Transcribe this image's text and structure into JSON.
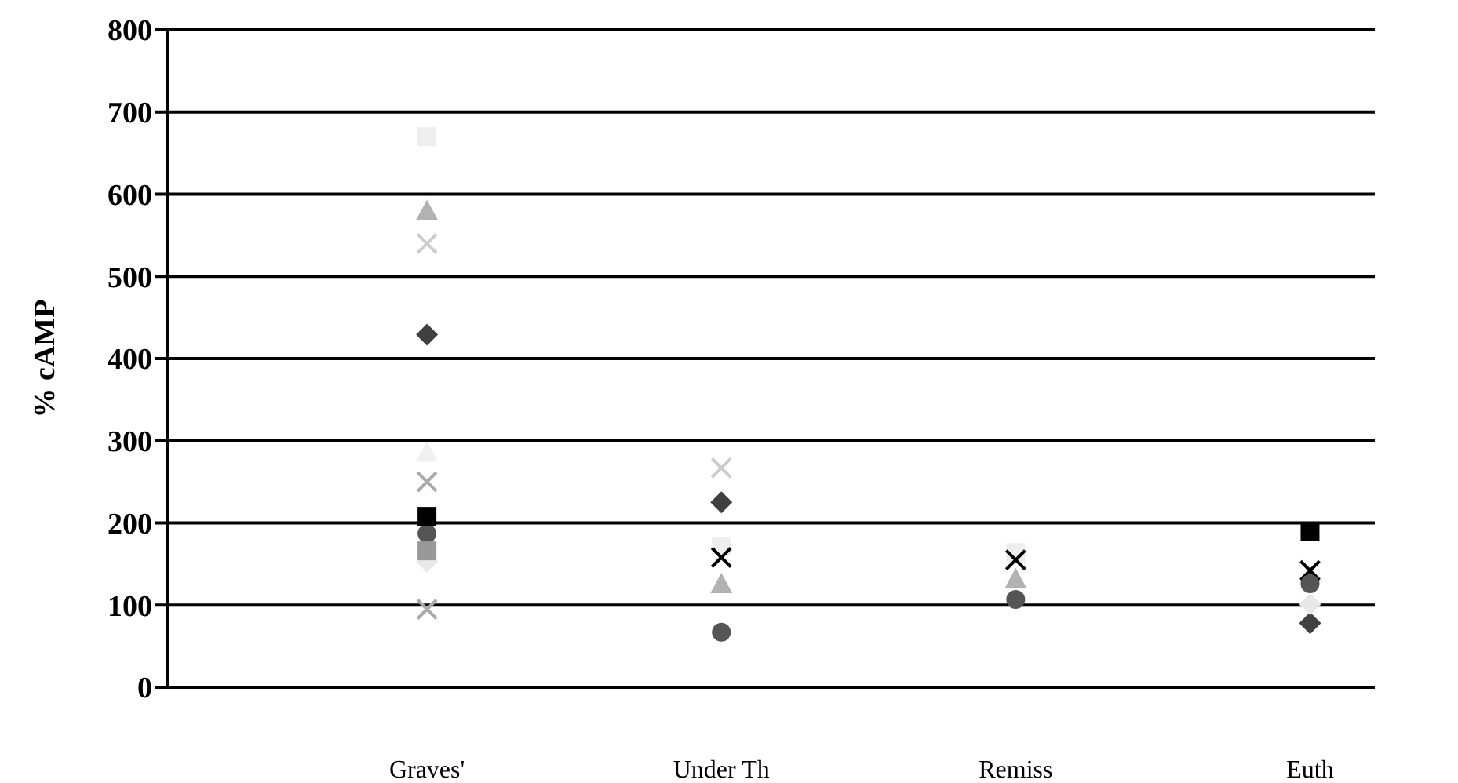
{
  "chart_data": {
    "type": "scatter",
    "ylabel": "% cAMP",
    "categories": [
      "Graves'",
      "Under Th",
      "Remiss",
      "Euth"
    ],
    "ylim": [
      0,
      800
    ],
    "yticks": [
      0,
      100,
      200,
      300,
      400,
      500,
      600,
      700,
      800
    ],
    "grid": "y",
    "series": [
      {
        "color": "#404040",
        "marker": "diamond",
        "values": [
          429,
          225,
          null,
          78
        ]
      },
      {
        "color": "#eeeeee",
        "marker": "square",
        "values": [
          670,
          172,
          164,
          null
        ]
      },
      {
        "color": "#b2b2b2",
        "marker": "triangle",
        "values": [
          580,
          126,
          132,
          null
        ]
      },
      {
        "color": "#cccccc",
        "marker": "cross",
        "values": [
          540,
          267,
          null,
          null
        ]
      },
      {
        "color": "#000000",
        "marker": "cross",
        "values": [
          null,
          158,
          155,
          142
        ]
      },
      {
        "color": "#555555",
        "marker": "circle",
        "values": [
          187,
          67,
          107,
          126
        ]
      },
      {
        "color": "#000000",
        "marker": "square",
        "values": [
          208,
          null,
          null,
          190
        ]
      },
      {
        "color": "#f0f0f0",
        "marker": "triangle",
        "values": [
          286,
          null,
          null,
          null
        ]
      },
      {
        "color": "#aaaaaa",
        "marker": "cross",
        "values": [
          250,
          null,
          null,
          null
        ]
      },
      {
        "color": "#e8e8e8",
        "marker": "diamond",
        "values": [
          153,
          null,
          null,
          101
        ]
      },
      {
        "color": "#aaaaaa",
        "marker": "cross",
        "values": [
          95,
          null,
          null,
          null
        ]
      },
      {
        "color": "#999999",
        "marker": "square",
        "values": [
          166,
          null,
          null,
          null
        ]
      }
    ]
  }
}
